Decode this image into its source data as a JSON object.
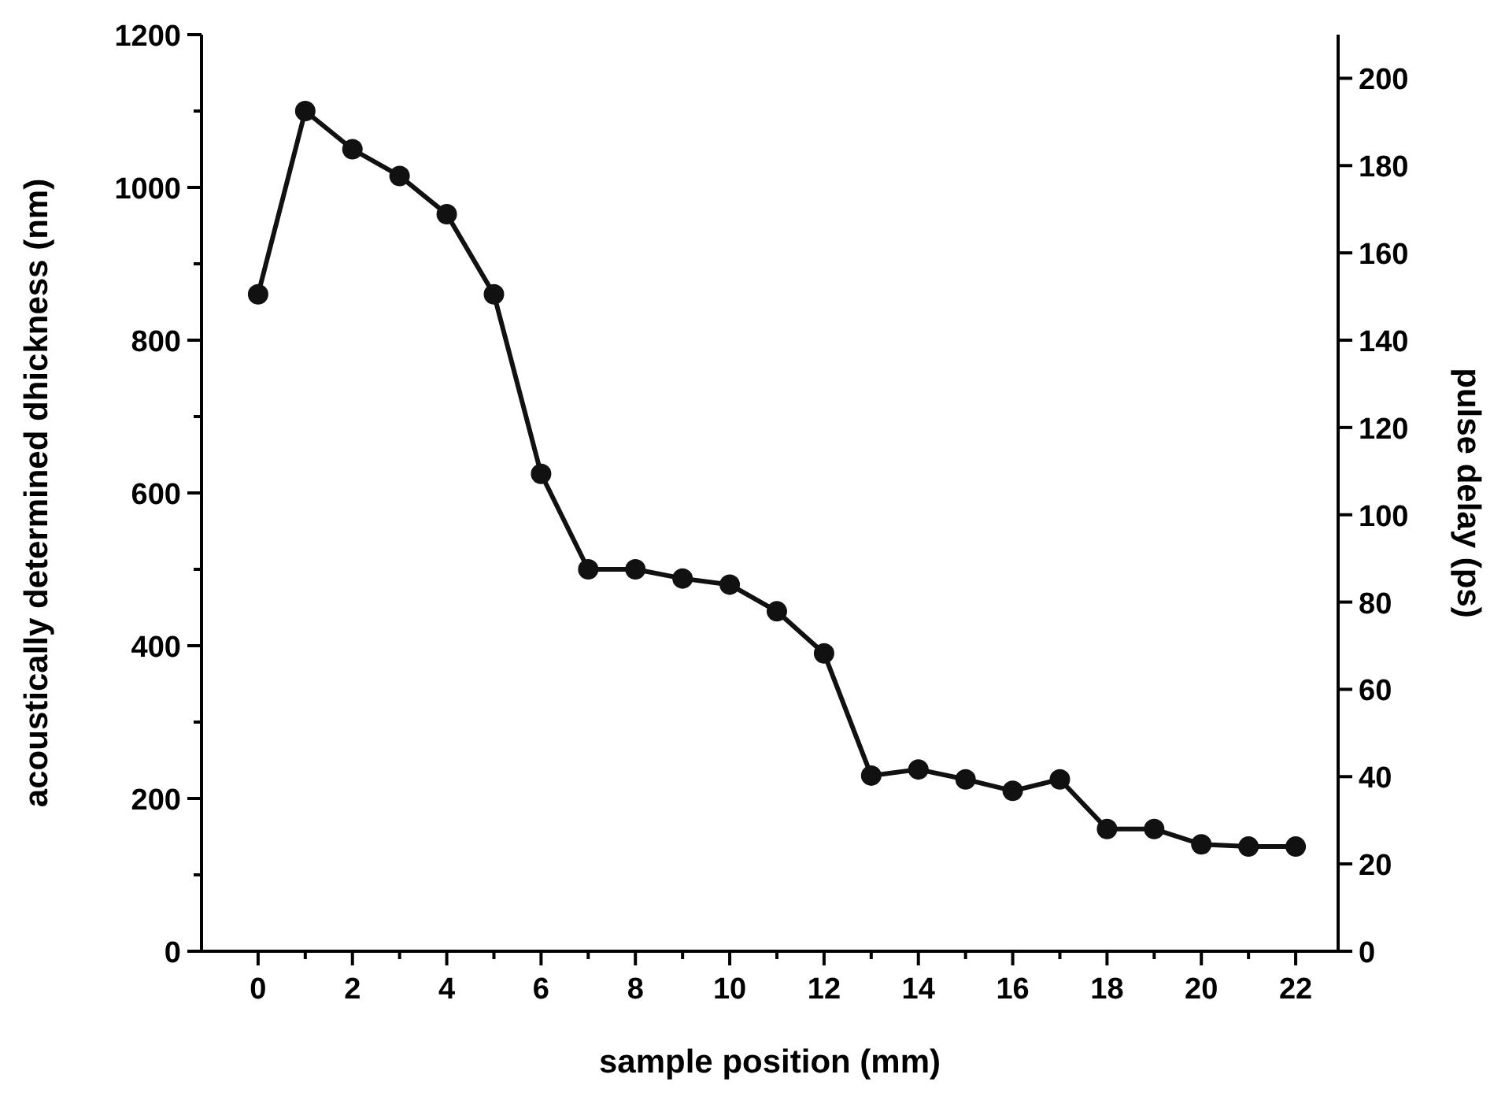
{
  "chart_data": {
    "type": "line",
    "xlabel": "sample position (mm)",
    "ylabel": "acoustically determined dhickness (nm)",
    "y2label": "pulse delay (ps)",
    "x": [
      0,
      1,
      2,
      3,
      4,
      5,
      6,
      7,
      8,
      9,
      10,
      11,
      12,
      13,
      14,
      15,
      16,
      17,
      18,
      19,
      20,
      21,
      22
    ],
    "series": [
      {
        "color": "#111111",
        "values": [
          860,
          1100,
          1050,
          1015,
          965,
          860,
          625,
          500,
          500,
          488,
          480,
          445,
          390,
          230,
          238,
          225,
          210,
          225,
          160,
          160,
          140,
          137,
          137
        ]
      }
    ],
    "marker": "circle",
    "line_style": "solid",
    "grid": false,
    "xlim": [
      -1.2,
      22.9
    ],
    "xticks": [
      0,
      {
        "value": 1,
        "label": null
      },
      2,
      {
        "value": 3,
        "label": null
      },
      4,
      {
        "value": 5,
        "label": null
      },
      6,
      {
        "value": 7,
        "label": null
      },
      8,
      {
        "value": 9,
        "label": null
      },
      10,
      {
        "value": 11,
        "label": null
      },
      12,
      {
        "value": 13,
        "label": null
      },
      14,
      {
        "value": 15,
        "label": null
      },
      16,
      {
        "value": 17,
        "label": null
      },
      18,
      {
        "value": 19,
        "label": null
      },
      20,
      {
        "value": 21,
        "label": null
      },
      22
    ],
    "ylim": [
      0,
      1200
    ],
    "yticks": [
      0,
      {
        "value": 100,
        "label": null
      },
      200,
      {
        "value": 300,
        "label": null
      },
      400,
      {
        "value": 500,
        "label": null
      },
      600,
      {
        "value": 700,
        "label": null
      },
      800,
      {
        "value": 900,
        "label": null
      },
      1000,
      {
        "value": 1100,
        "label": null
      },
      1200
    ],
    "y2lim": [
      0,
      210
    ],
    "y2ticks": [
      0,
      20,
      40,
      60,
      80,
      100,
      120,
      140,
      160,
      180,
      200
    ]
  }
}
